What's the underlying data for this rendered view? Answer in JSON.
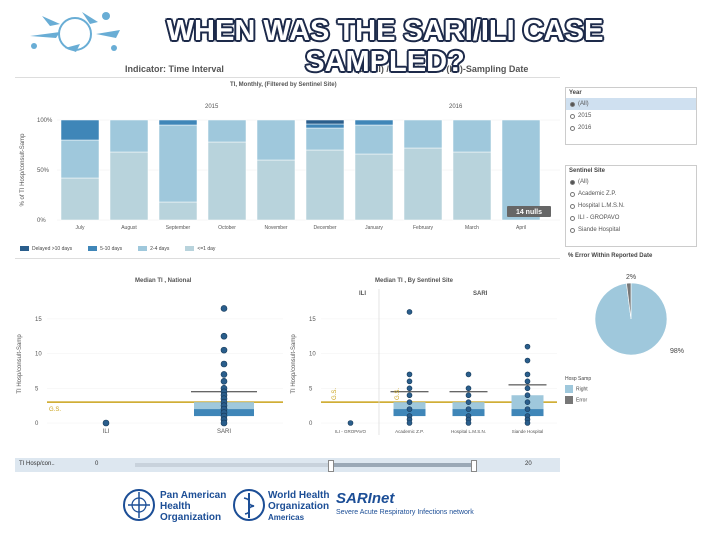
{
  "slide_title": "WHEN WAS THE SARI/ILI CASE SAMPLED?",
  "dashboard": {
    "indicator_prefix": "Indicator: Time Interval",
    "indicator_fragment_a": "(SARI)",
    "indicator_suffix": "/Consultation (ILI)-Sampling Date",
    "subtitle": "TI, Monthly, (Filtered by Sentinel Site)",
    "year_labels": [
      "2015",
      "2016"
    ],
    "ylabel_top": "% of TI Hosp/consult-Samp",
    "yticks_top": [
      "100%",
      "50%",
      "0%"
    ],
    "nulls_badge": "14 nulls",
    "legend": [
      {
        "label": "Delayed >10 days",
        "color": "#2a5e8c"
      },
      {
        "label": "5-10 days",
        "color": "#3f86b8"
      },
      {
        "label": "2-4 days",
        "color": "#9fc8dc"
      },
      {
        "label": "<=1 day",
        "color": "#b8d3dc"
      }
    ],
    "median_national_title": "Median TI , National",
    "median_site_title": "Median TI , By Sentinel Site",
    "ylabel_bottom": "TI Hosp/consult-Samp",
    "ylabel_bottom2": "TI Hosp/consult-Samp",
    "yticks_bottom": [
      "15",
      "10",
      "5",
      "0"
    ],
    "yticks_bottom2": [
      "15",
      "10",
      "5",
      "0"
    ],
    "gs_label": "G.S.",
    "gs_vertical_1": "G.S.",
    "gs_vertical_2": "G.S.",
    "national_categories": [
      "ILI",
      "SARI"
    ],
    "site_groups": [
      "ILI",
      "SARI"
    ],
    "site_categories": [
      "ILI - GROPAVO",
      "Academic Z.P.",
      "Hospital L.M.S.N.",
      "Siande Hospital"
    ],
    "slider_label": "TI Hosp/con..",
    "slider_min": "0",
    "slider_max": "20"
  },
  "right_panel": {
    "year_title": "Year",
    "year_options": [
      "(All)",
      "2015",
      "2016"
    ],
    "site_title": "Sentinel Site",
    "site_options": [
      "(All)",
      "Academic Z.P.",
      "Hospital L.M.S.N.",
      "ILI - GROPAVO",
      "Siande Hospital"
    ],
    "error_title": "% Error Within Reported Date",
    "pie_small_label": "2%",
    "pie_big_label": "98%",
    "pie_legend_title": "Hosp Samp",
    "pie_legend": [
      {
        "label": "Right",
        "color": "#9fc8dc"
      },
      {
        "label": "Error",
        "color": "#777777"
      }
    ]
  },
  "footer": {
    "paho_line1": "Pan American",
    "paho_line2": "Health",
    "paho_line3": "Organization",
    "who_line1": "World Health",
    "who_line2": "Organization",
    "who_line3": "Americas",
    "sarinet_name": "SARInet",
    "sarinet_tag": "Severe Acute Respiratory Infections network"
  },
  "chart_data": [
    {
      "type": "bar",
      "stacked": true,
      "percent": true,
      "categories": [
        "July",
        "August",
        "September",
        "October",
        "November",
        "December",
        "January",
        "February",
        "March",
        "April"
      ],
      "series": [
        {
          "name": "<=1 day",
          "values": [
            42,
            68,
            18,
            78,
            60,
            70,
            66,
            72,
            68,
            0
          ]
        },
        {
          "name": "2-4 days",
          "values": [
            38,
            32,
            77,
            22,
            40,
            22,
            29,
            28,
            32,
            100
          ]
        },
        {
          "name": "5-10 days",
          "values": [
            20,
            0,
            5,
            0,
            0,
            4,
            5,
            0,
            0,
            0
          ]
        },
        {
          "name": "Delayed >10 days",
          "values": [
            0,
            0,
            0,
            0,
            0,
            4,
            0,
            0,
            0,
            0
          ]
        }
      ],
      "ylim": [
        0,
        100
      ]
    },
    {
      "type": "scatter",
      "categories": [
        "ILI",
        "SARI"
      ],
      "points": [
        {
          "category": "ILI",
          "values": [
            0
          ]
        },
        {
          "category": "SARI",
          "values": [
            16.5,
            12.5,
            10.5,
            8.5,
            7,
            6,
            5,
            4.5,
            4,
            3.5,
            3,
            2.5,
            2,
            1.5,
            1,
            0.5,
            0
          ]
        }
      ],
      "box": [
        {
          "category": "SARI",
          "q1": 1,
          "median": 2,
          "q3": 3
        }
      ],
      "reference_line": 3,
      "ylim": [
        0,
        17
      ]
    },
    {
      "type": "scatter",
      "categories": [
        "ILI - GROPAVO",
        "Academic Z.P.",
        "Hospital L.M.S.N.",
        "Siande Hospital"
      ],
      "points": [
        {
          "category": "ILI - GROPAVO",
          "values": [
            0
          ]
        },
        {
          "category": "Academic Z.P.",
          "values": [
            16,
            7,
            6,
            5,
            4,
            3,
            2,
            1,
            0.5,
            0
          ]
        },
        {
          "category": "Hospital L.M.S.N.",
          "values": [
            7,
            5,
            4,
            3,
            2,
            1,
            0.5,
            0
          ]
        },
        {
          "category": "Siande Hospital",
          "values": [
            11,
            9,
            7,
            6,
            5,
            4,
            3,
            2,
            1,
            0.5,
            0
          ]
        }
      ],
      "box": [
        {
          "category": "Academic Z.P.",
          "q1": 1,
          "median": 2,
          "q3": 3
        },
        {
          "category": "Hospital L.M.S.N.",
          "q1": 1,
          "median": 2,
          "q3": 3
        },
        {
          "category": "Siande Hospital",
          "q1": 1,
          "median": 2,
          "q3": 4
        }
      ],
      "reference_line": 3,
      "ylim": [
        0,
        17
      ]
    },
    {
      "type": "pie",
      "categories": [
        "Right",
        "Error"
      ],
      "values": [
        98,
        2
      ]
    }
  ]
}
